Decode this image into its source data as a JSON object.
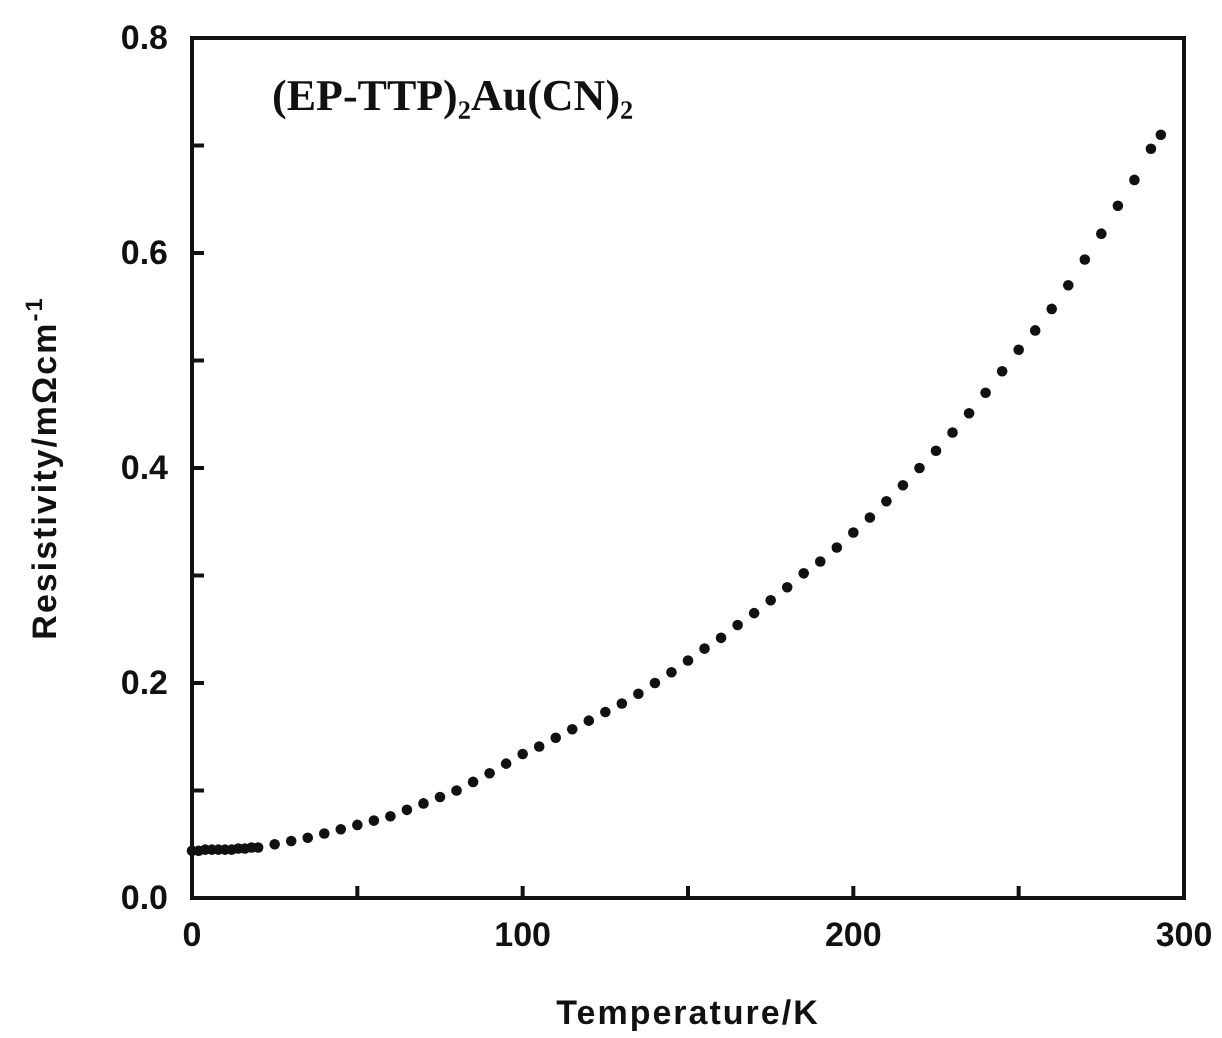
{
  "chart_data": {
    "type": "scatter",
    "title": "(EP-TTP)₂Au(CN)₂",
    "xlabel": "Temperature/K",
    "ylabel": "Resistivity/mΩcm$^{-1}$",
    "marker": "circle",
    "grid": false,
    "xlim": [
      0,
      300
    ],
    "xticks": [
      0,
      {
        "value": 50,
        "label": null
      },
      100,
      {
        "value": 150,
        "label": null
      },
      200,
      {
        "value": 250,
        "label": null
      },
      300
    ],
    "ylim": [
      0,
      0.8
    ],
    "yticks": [
      {
        "value": 0,
        "label": "0.0"
      },
      {
        "value": 0.1,
        "label": null
      },
      {
        "value": 0.2,
        "label": "0.2"
      },
      {
        "value": 0.3,
        "label": null
      },
      {
        "value": 0.4,
        "label": "0.4"
      },
      {
        "value": 0.5,
        "label": null
      },
      {
        "value": 0.6,
        "label": "0.6"
      },
      {
        "value": 0.7,
        "label": null
      },
      {
        "value": 0.8,
        "label": "0.8"
      }
    ],
    "series": [
      {
        "color": "#111111",
        "x": [
          0,
          2,
          4,
          6,
          8,
          10,
          12,
          14,
          16,
          18,
          20,
          25,
          30,
          35,
          40,
          45,
          50,
          55,
          60,
          65,
          70,
          75,
          80,
          85,
          90,
          95,
          100,
          105,
          110,
          115,
          120,
          125,
          130,
          135,
          140,
          145,
          150,
          155,
          160,
          165,
          170,
          175,
          180,
          185,
          190,
          195,
          200,
          205,
          210,
          215,
          220,
          225,
          230,
          235,
          240,
          245,
          250,
          255,
          260,
          265,
          270,
          275,
          280,
          285,
          290,
          293
        ],
        "values": [
          0.044,
          0.044,
          0.045,
          0.045,
          0.045,
          0.045,
          0.045,
          0.046,
          0.046,
          0.047,
          0.047,
          0.05,
          0.053,
          0.056,
          0.06,
          0.064,
          0.068,
          0.072,
          0.076,
          0.082,
          0.088,
          0.094,
          0.1,
          0.108,
          0.116,
          0.125,
          0.134,
          0.141,
          0.149,
          0.157,
          0.165,
          0.173,
          0.181,
          0.19,
          0.2,
          0.21,
          0.221,
          0.232,
          0.242,
          0.254,
          0.265,
          0.277,
          0.289,
          0.302,
          0.313,
          0.326,
          0.34,
          0.354,
          0.369,
          0.384,
          0.4,
          0.416,
          0.433,
          0.451,
          0.47,
          0.49,
          0.51,
          0.528,
          0.548,
          0.57,
          0.594,
          0.618,
          0.644,
          0.668,
          0.697,
          0.71
        ]
      }
    ]
  }
}
